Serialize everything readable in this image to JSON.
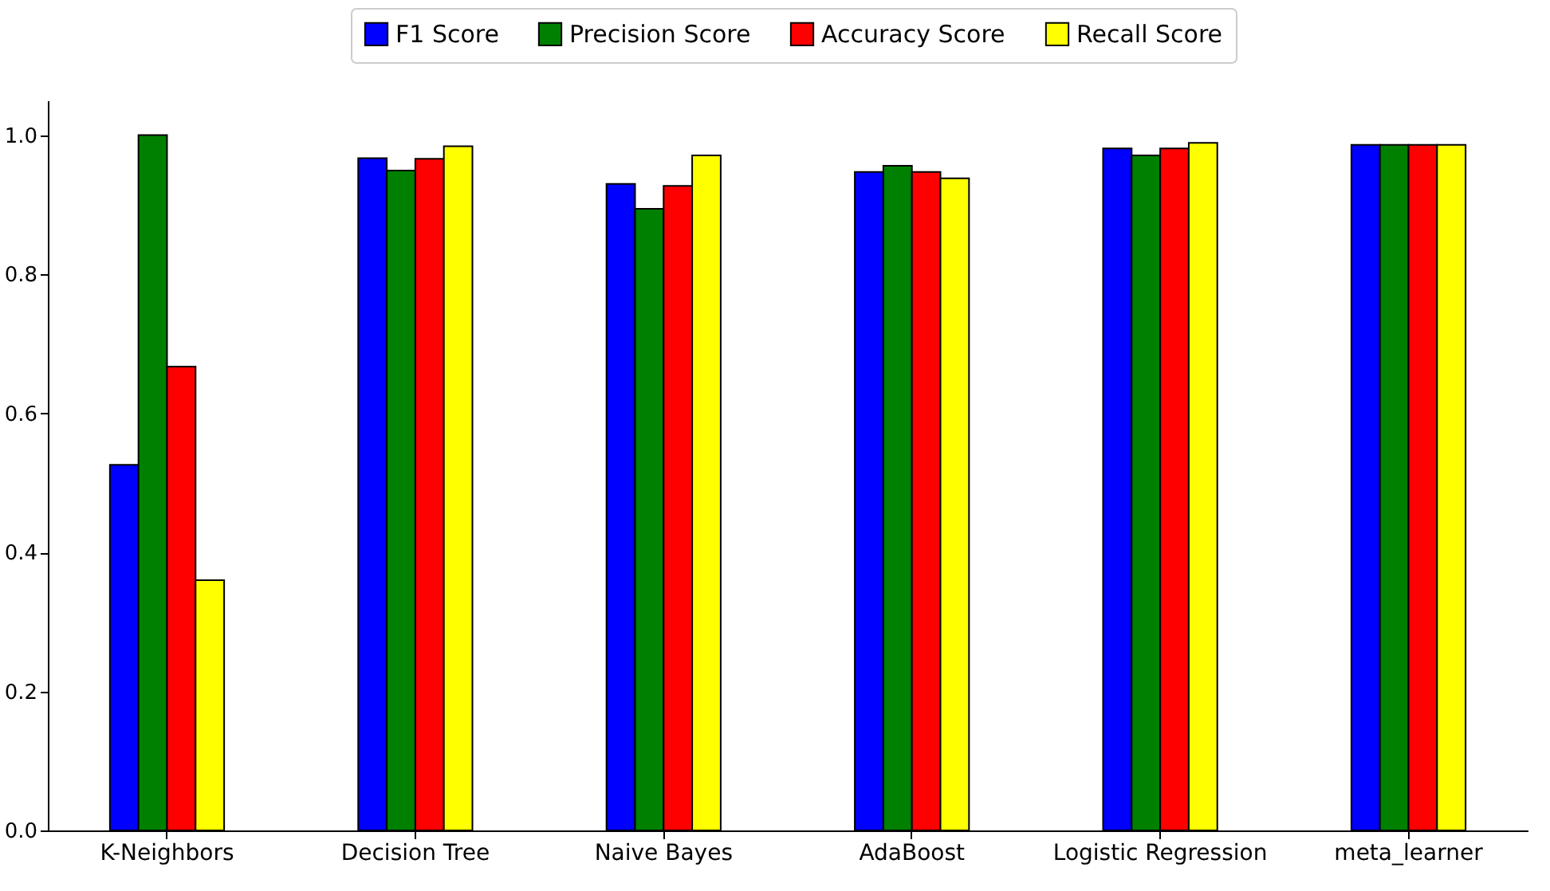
{
  "chart_data": {
    "type": "bar",
    "categories": [
      "K-Neighbors",
      "Decision Tree",
      "Naive Bayes",
      "AdaBoost",
      "Logistic Regression",
      "meta_learner"
    ],
    "series": [
      {
        "name": "F1 Score",
        "color": "#0000ff",
        "values": [
          0.526,
          0.967,
          0.93,
          0.947,
          0.981,
          0.986
        ]
      },
      {
        "name": "Precision Score",
        "color": "#008000",
        "values": [
          1.0,
          0.949,
          0.894,
          0.956,
          0.971,
          0.986
        ]
      },
      {
        "name": "Accuracy Score",
        "color": "#ff0000",
        "values": [
          0.667,
          0.966,
          0.927,
          0.947,
          0.981,
          0.986
        ]
      },
      {
        "name": "Recall Score",
        "color": "#ffff00",
        "values": [
          0.36,
          0.984,
          0.971,
          0.938,
          0.989,
          0.986
        ]
      }
    ],
    "ylim": [
      0,
      1.05
    ],
    "yticks": [
      {
        "value": 0,
        "label": "0.0"
      },
      0.2,
      0.4,
      0.6,
      0.8,
      {
        "value": 1,
        "label": "1.0"
      }
    ],
    "legend": "top",
    "grid": false
  }
}
